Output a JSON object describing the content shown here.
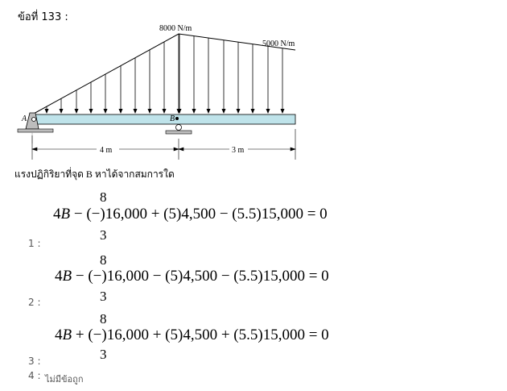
{
  "question_title": "ข้อที่ 133 :",
  "diagram": {
    "load_left": "8000 N/m",
    "load_right": "5000 N/m",
    "support_a": "A",
    "support_b": "B",
    "dim_left": "4 m",
    "dim_right": "3 m",
    "colors": {
      "beam": "#bfe3ea",
      "support": "#bdbdbd",
      "line": "#000000"
    }
  },
  "question_text": "แรงปฏิกิริยาที่จุด B หาได้จากสมการใด",
  "options": [
    {
      "label": "1 :",
      "frac_num": "8",
      "frac_den": "3",
      "pre": "4",
      "var": "B",
      "op1": "−",
      "paren": "(−)",
      "t1": "16,000",
      "op2": "+",
      "t2": "(5)4,500",
      "op3": "−",
      "t3": "(5.5)15,000",
      "eq": "=",
      "rhs": "0"
    },
    {
      "label": "2 :",
      "frac_num": "8",
      "frac_den": "3",
      "pre": "4",
      "var": "B",
      "op1": "−",
      "paren": "(−)",
      "t1": "16,000",
      "op2": "−",
      "t2": "(5)4,500",
      "op3": "−",
      "t3": "(5.5)15,000",
      "eq": "=",
      "rhs": "0"
    },
    {
      "label": "3 :",
      "frac_num": "8",
      "frac_den": "3",
      "pre": "4",
      "var": "B",
      "op1": "+",
      "paren": "(−)",
      "t1": "16,000",
      "op2": "+",
      "t2": "(5)4,500",
      "op3": "+",
      "t3": "(5.5)15,000",
      "eq": "=",
      "rhs": "0"
    },
    {
      "label": "4 :",
      "text": "ไม่มีข้อถูก"
    }
  ]
}
